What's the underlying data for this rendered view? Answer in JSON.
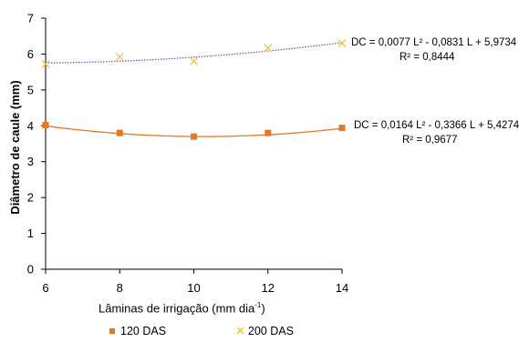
{
  "chart_data": {
    "type": "scatter",
    "xlabel_main": "Lâminas de irrigação (mm dia",
    "xlabel_sup": "-1",
    "xlabel_end": ")",
    "ylabel": "Diâmetro de caule (mm)",
    "xlim": [
      6,
      14
    ],
    "ylim": [
      0,
      7
    ],
    "xticks": [
      6,
      8,
      10,
      12,
      14
    ],
    "yticks": [
      0,
      1,
      2,
      3,
      4,
      5,
      6,
      7
    ],
    "grid": false,
    "legend_position": "bottom",
    "x": [
      6,
      8,
      10,
      12,
      14
    ],
    "series": [
      {
        "name": "120 DAS",
        "marker": "square",
        "color": "#E87722",
        "values": [
          4.02,
          3.8,
          3.7,
          3.8,
          3.94
        ],
        "trend": {
          "a": 0.0164,
          "b": -0.3366,
          "c": 5.4274,
          "style": "solid"
        }
      },
      {
        "name": "200 DAS",
        "marker": "cross",
        "color": "#F2C12E",
        "values": [
          5.72,
          5.92,
          5.8,
          6.17,
          6.3
        ],
        "trend": {
          "a": 0.0077,
          "b": -0.0831,
          "c": 5.9734,
          "style": "dotted",
          "color": "#7B45C8"
        }
      }
    ],
    "annotations": [
      {
        "text": "DC = 0,0077 L² - 0,0831 L + 5,9734",
        "r2": "R² = 0,8444"
      },
      {
        "text": "DC = 0,0164 L² - 0,3366 L + 5,4274",
        "r2": "R² = 0,9677"
      }
    ]
  }
}
